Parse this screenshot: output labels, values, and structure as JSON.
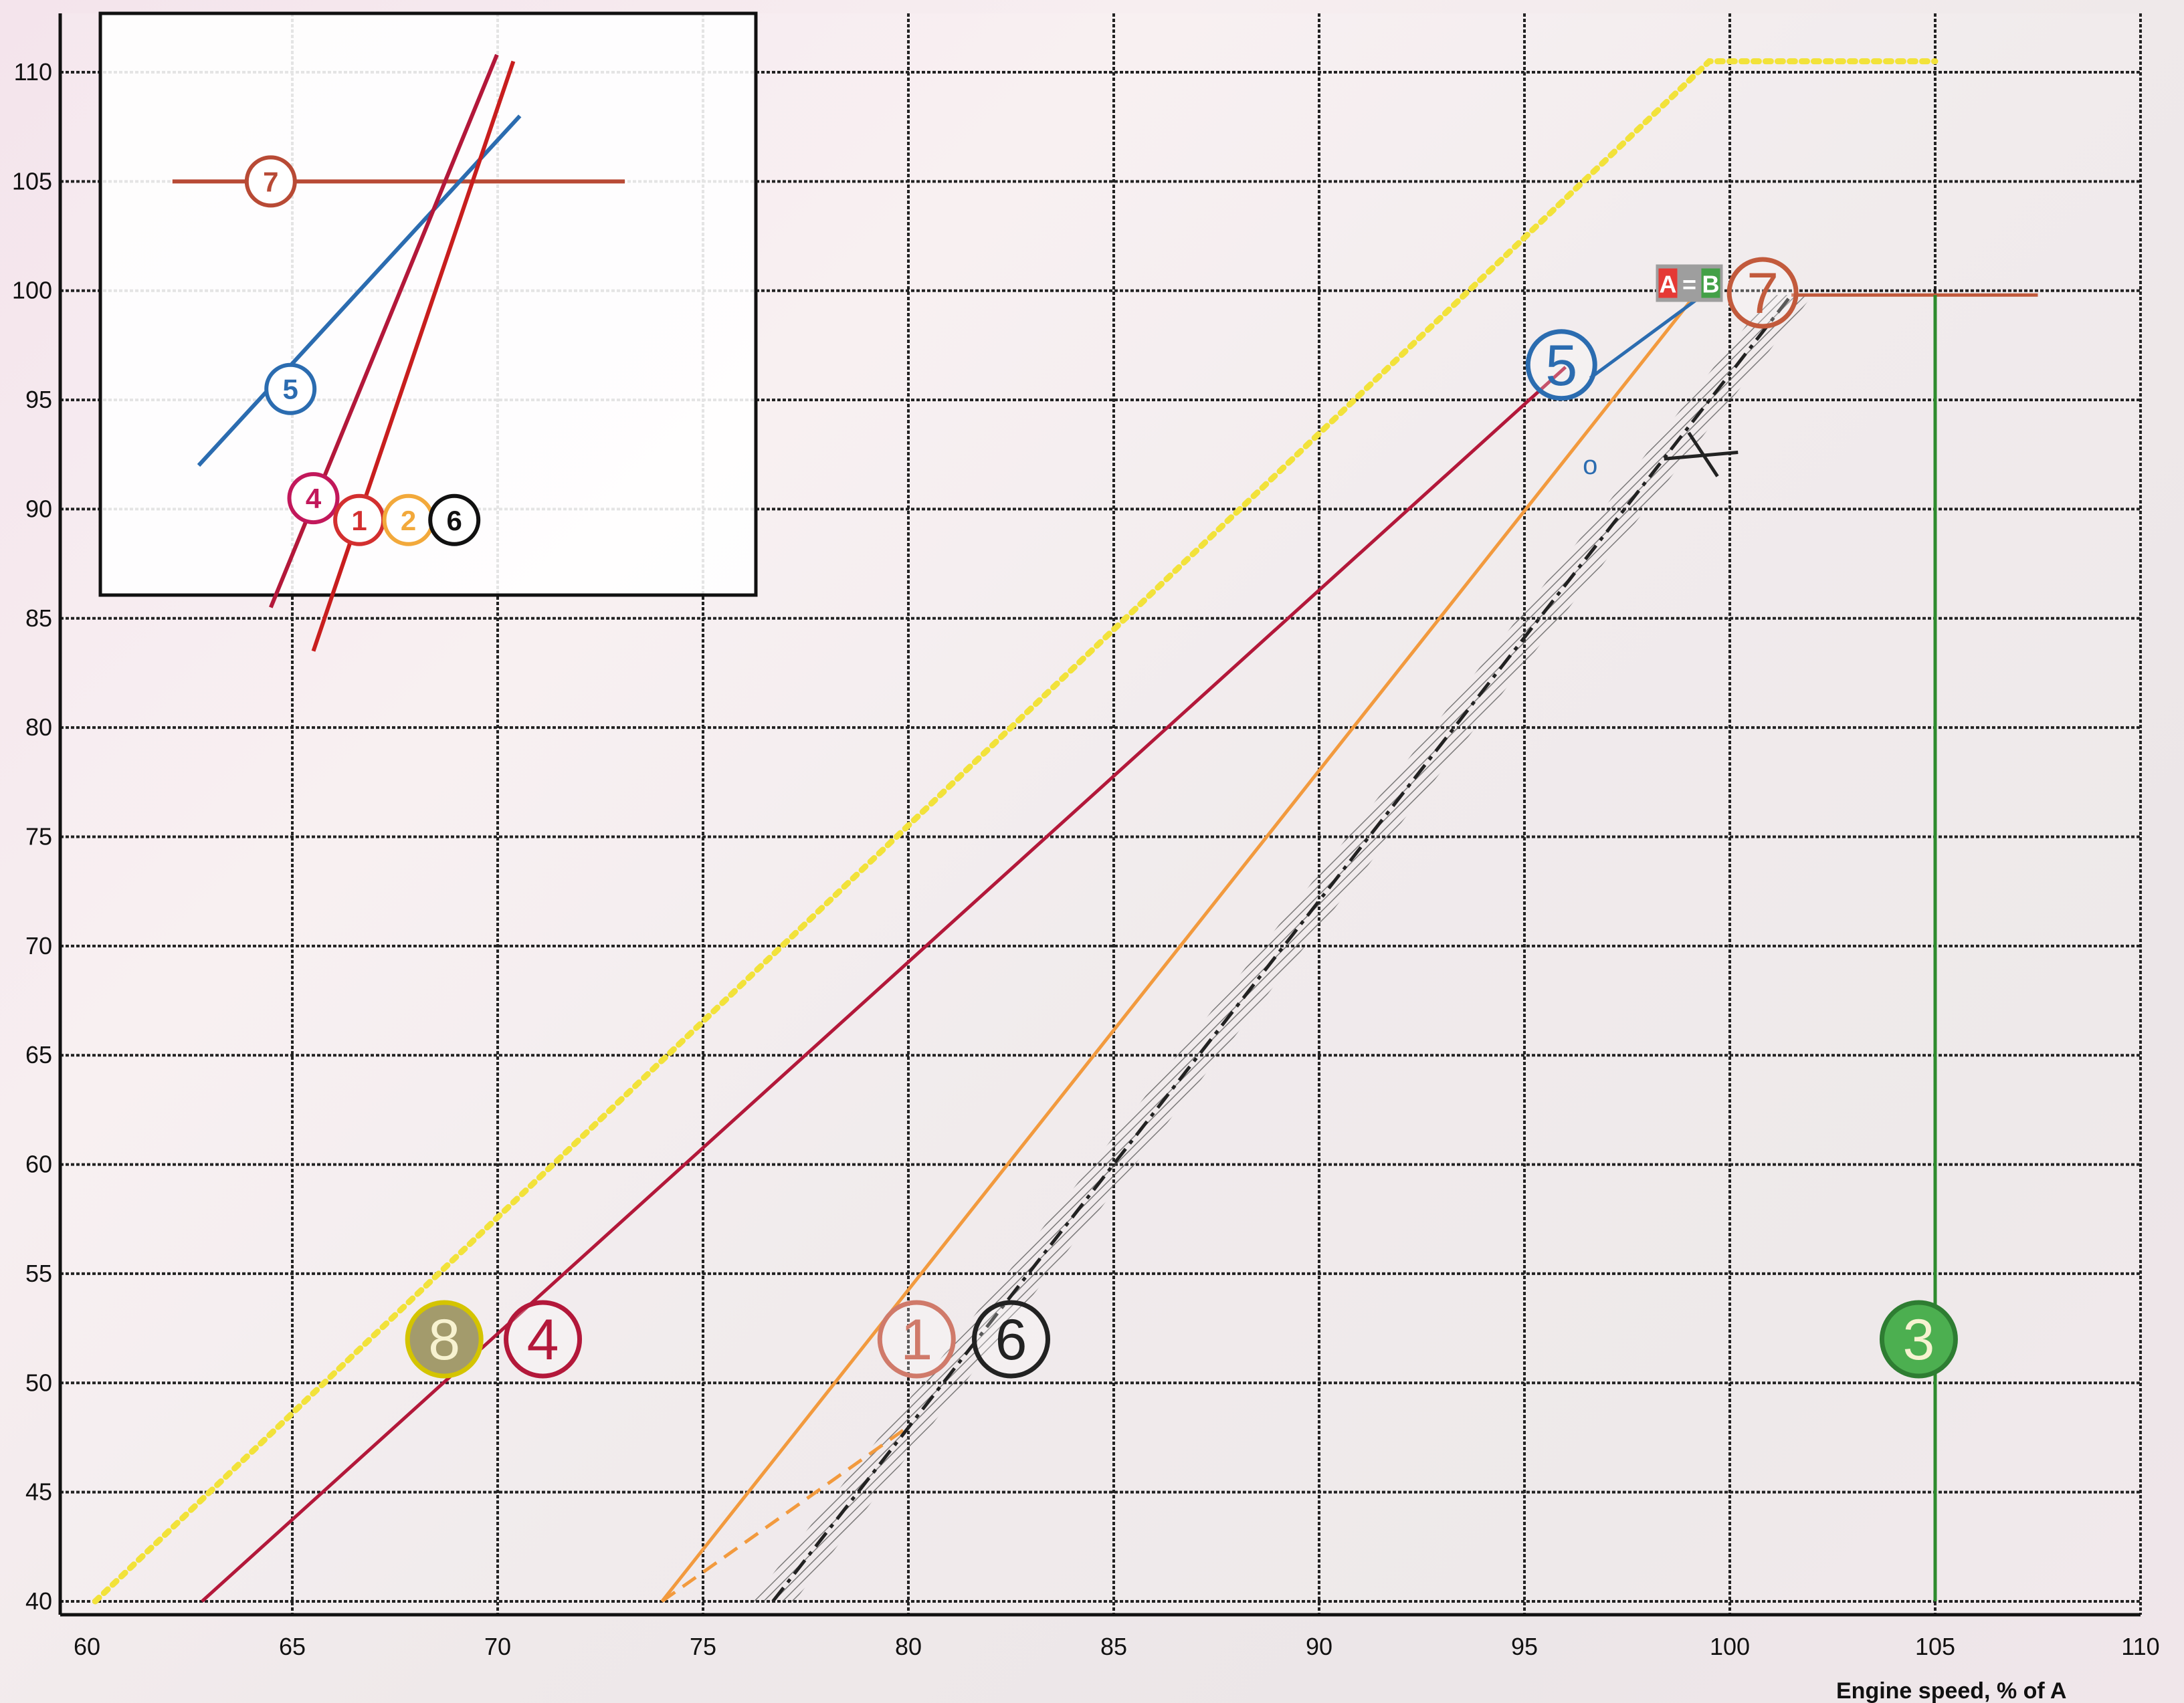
{
  "chart_data": {
    "type": "line",
    "xlabel": "Engine speed, % of A",
    "ylabel": "",
    "xlim": [
      60,
      110
    ],
    "ylim": [
      40,
      112
    ],
    "x_ticks": [
      60,
      65,
      70,
      75,
      80,
      85,
      90,
      95,
      100,
      105,
      110
    ],
    "y_ticks": [
      40,
      45,
      50,
      55,
      60,
      65,
      70,
      75,
      80,
      85,
      90,
      95,
      100,
      105,
      110
    ],
    "grid": true,
    "series": [
      {
        "name": "8",
        "color": "#f2e23a",
        "style": "dotted",
        "x": [
          60.2,
          99.5,
          105
        ],
        "y": [
          40,
          110.5,
          110.5
        ]
      },
      {
        "name": "4",
        "color": "#b3183a",
        "style": "solid",
        "x": [
          62.8,
          96
        ],
        "y": [
          40,
          96.5
        ]
      },
      {
        "name": "1",
        "color": "#f29a3e",
        "style": "solid",
        "x": [
          74,
          99.2
        ],
        "y": [
          40,
          99.9
        ]
      },
      {
        "name": "2",
        "color": "#f29a3e",
        "style": "dashed",
        "x": [
          74,
          80
        ],
        "y": [
          40,
          48
        ]
      },
      {
        "name": "6",
        "color": "#222222",
        "style": "dash-dot",
        "x": [
          76.7,
          101.5
        ],
        "y": [
          40,
          99.8
        ]
      },
      {
        "name": "7",
        "color": "#c25a3c",
        "style": "solid",
        "x": [
          101.5,
          107.5
        ],
        "y": [
          99.8,
          99.8
        ]
      },
      {
        "name": "3",
        "color": "#2e8b2e",
        "style": "solid",
        "x": [
          105,
          105
        ],
        "y": [
          40,
          99.8
        ]
      },
      {
        "name": "5",
        "color": "#2b6cb0",
        "style": "solid",
        "x": [
          96.6,
          99.2
        ],
        "y": [
          96,
          99.6
        ]
      }
    ],
    "markers": [
      {
        "label": "8",
        "x": 68.7,
        "y": 52,
        "color": "#d4c400",
        "fill": "#a39b6c"
      },
      {
        "label": "4",
        "x": 71.1,
        "y": 52,
        "color": "#b3183a",
        "fill": "none"
      },
      {
        "label": "1",
        "x": 80.2,
        "y": 52,
        "color": "#d07a6a",
        "fill": "none"
      },
      {
        "label": "6",
        "x": 82.5,
        "y": 52,
        "color": "#222222",
        "fill": "none"
      },
      {
        "label": "3",
        "x": 104.6,
        "y": 52,
        "color": "#2e7d32",
        "fill": "#4caf50"
      },
      {
        "label": "5",
        "x": 95.9,
        "y": 96.6,
        "color": "#2b6cb0",
        "fill": "none"
      },
      {
        "label": "7",
        "x": 100.8,
        "y": 99.9,
        "color": "#c25a3c",
        "fill": "none"
      }
    ],
    "annotations": {
      "small_o": "o",
      "ab_badge": {
        "left": "A",
        "middle": "=",
        "right": "B",
        "left_color": "#e53935",
        "right_color": "#43a047",
        "bg": "#9e9e9e"
      }
    },
    "inset": {
      "lines": [
        {
          "name": "7",
          "color": "#b84a35",
          "x": [
            62.2,
            76
          ],
          "y": [
            105,
            105
          ]
        },
        {
          "name": "5",
          "color": "#2b6cb0",
          "x": [
            63,
            72.8
          ],
          "y": [
            92,
            108
          ]
        },
        {
          "name": "4",
          "color": "#b3183a",
          "x": [
            65.2,
            72.1
          ],
          "y": [
            85.5,
            110.8
          ]
        },
        {
          "name": "1",
          "color": "#c81e1e",
          "x": [
            66.5,
            72.6
          ],
          "y": [
            83.5,
            110.5
          ]
        }
      ],
      "markers": [
        {
          "label": "7",
          "x": 65.2,
          "y": 105,
          "color": "#b84a35"
        },
        {
          "label": "5",
          "x": 65.8,
          "y": 95.5,
          "color": "#2b6cb0"
        },
        {
          "label": "4",
          "x": 66.5,
          "y": 90.5,
          "color": "#c2185b"
        },
        {
          "label": "1",
          "x": 67.9,
          "y": 89.5,
          "color": "#d32f2f"
        },
        {
          "label": "2",
          "x": 69.4,
          "y": 89.5,
          "color": "#f2a93b"
        },
        {
          "label": "6",
          "x": 70.8,
          "y": 89.5,
          "color": "#111111"
        }
      ]
    }
  }
}
